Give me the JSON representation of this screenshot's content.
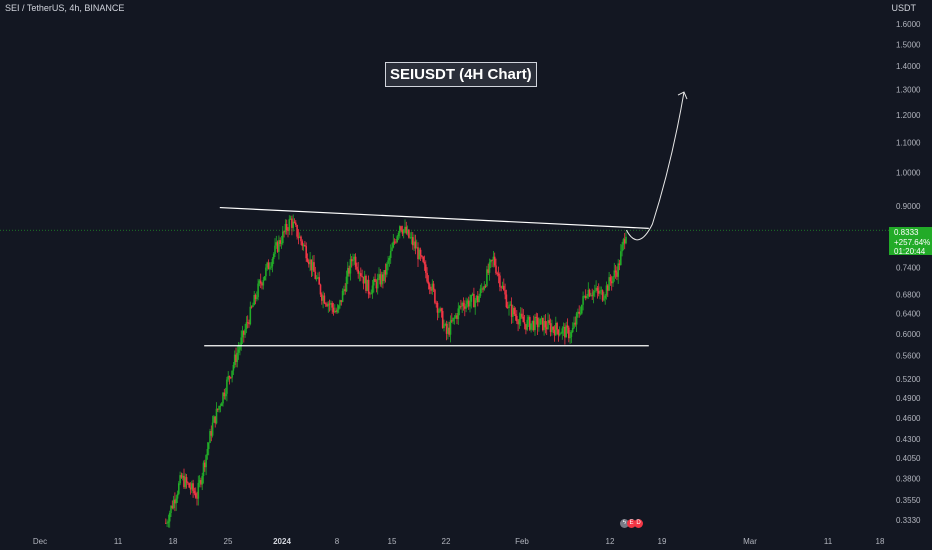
{
  "header": {
    "symbol": "SEI / TetherUS, 4h, BINANCE"
  },
  "price_tag": {
    "price": "0.8333",
    "change": "+257.64%",
    "countdown": "01:20:44"
  },
  "colors": {
    "background": "#131722",
    "up": "#22ab28",
    "down": "#f23645",
    "trendline": "#ffffff",
    "grid_text": "#b2b5be",
    "price_line": "#22ab28"
  },
  "events": {
    "icons": [
      "lightning-icon",
      "earnings-icon",
      "dividends-icon"
    ]
  },
  "chart_data": {
    "type": "candlestick",
    "title": "SEIUSDT (4H Chart)",
    "y_axis": {
      "label": "USDT",
      "scale": "log",
      "ticks": [
        "1.6000",
        "1.5000",
        "1.4000",
        "1.3000",
        "1.2000",
        "1.1000",
        "1.0000",
        "0.9000",
        "0.8000",
        "0.7400",
        "0.6800",
        "0.6400",
        "0.6000",
        "0.5600",
        "0.5200",
        "0.4900",
        "0.4600",
        "0.4300",
        "0.4050",
        "0.3800",
        "0.3550",
        "0.3330"
      ]
    },
    "x_axis": {
      "ticks": [
        "Dec",
        "11",
        "18",
        "25",
        "2024",
        "8",
        "15",
        "22",
        "Feb",
        "12",
        "19",
        "Mar",
        "11",
        "18"
      ]
    },
    "current_price": 0.8333,
    "resistance_line": {
      "from": {
        "date": "2023-12-24",
        "price": 0.895
      },
      "to": {
        "date": "2024-02-17",
        "price": 0.838
      }
    },
    "support_line": {
      "from": {
        "date": "2023-12-22",
        "price": 0.578
      },
      "to": {
        "date": "2024-02-17",
        "price": 0.578
      }
    },
    "projected_path": {
      "description": "pullback then breakout",
      "target": 1.29
    },
    "close_path": [
      [
        "2023-12-17",
        0.33
      ],
      [
        "2023-12-19",
        0.38
      ],
      [
        "2023-12-21",
        0.36
      ],
      [
        "2023-12-23",
        0.45
      ],
      [
        "2023-12-25",
        0.52
      ],
      [
        "2023-12-27",
        0.6
      ],
      [
        "2023-12-29",
        0.7
      ],
      [
        "2023-12-31",
        0.78
      ],
      [
        "2024-01-02",
        0.86
      ],
      [
        "2024-01-04",
        0.78
      ],
      [
        "2024-01-06",
        0.68
      ],
      [
        "2024-01-08",
        0.64
      ],
      [
        "2024-01-10",
        0.77
      ],
      [
        "2024-01-12",
        0.69
      ],
      [
        "2024-01-14",
        0.72
      ],
      [
        "2024-01-16",
        0.85
      ],
      [
        "2024-01-18",
        0.79
      ],
      [
        "2024-01-20",
        0.7
      ],
      [
        "2024-01-22",
        0.6
      ],
      [
        "2024-01-24",
        0.66
      ],
      [
        "2024-01-26",
        0.67
      ],
      [
        "2024-01-28",
        0.76
      ],
      [
        "2024-01-30",
        0.65
      ],
      [
        "2024-02-01",
        0.62
      ],
      [
        "2024-02-03",
        0.62
      ],
      [
        "2024-02-05",
        0.61
      ],
      [
        "2024-02-07",
        0.6
      ],
      [
        "2024-02-09",
        0.69
      ],
      [
        "2024-02-11",
        0.68
      ],
      [
        "2024-02-13",
        0.74
      ],
      [
        "2024-02-14",
        0.8333
      ]
    ]
  }
}
